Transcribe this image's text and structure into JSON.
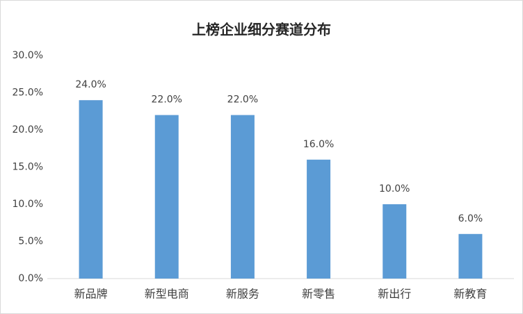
{
  "chart_data": {
    "type": "bar",
    "title": "上榜企业细分赛道分布",
    "categories": [
      "新品牌",
      "新型电商",
      "新服务",
      "新零售",
      "新出行",
      "新教育"
    ],
    "values": [
      24,
      22,
      22,
      16,
      10,
      6
    ],
    "value_labels": [
      "24.0%",
      "22.0%",
      "22.0%",
      "16.0%",
      "10.0%",
      "6.0%"
    ],
    "color": "#5b9bd5",
    "ylim": [
      0,
      30
    ],
    "yticks": [
      {
        "value": 0,
        "label": "0.0%"
      },
      {
        "value": 5,
        "label": "5.0%"
      },
      {
        "value": 10,
        "label": "10.0%"
      },
      {
        "value": 15,
        "label": "15.0%"
      },
      {
        "value": 20,
        "label": "20.0%"
      },
      {
        "value": 25,
        "label": "25.0%"
      },
      {
        "value": 30,
        "label": "30.0%"
      }
    ],
    "grid": false
  }
}
